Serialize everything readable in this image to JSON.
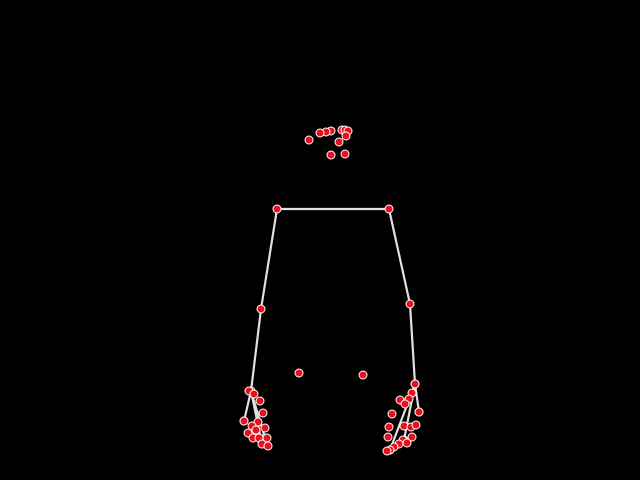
{
  "colors": {
    "background": "#000000",
    "bone": "#e0e0e0",
    "joint_fill": "#e8101a",
    "joint_stroke": "#ffffff"
  },
  "skeleton": {
    "type": "pose-landmarks-overlay"
  }
}
